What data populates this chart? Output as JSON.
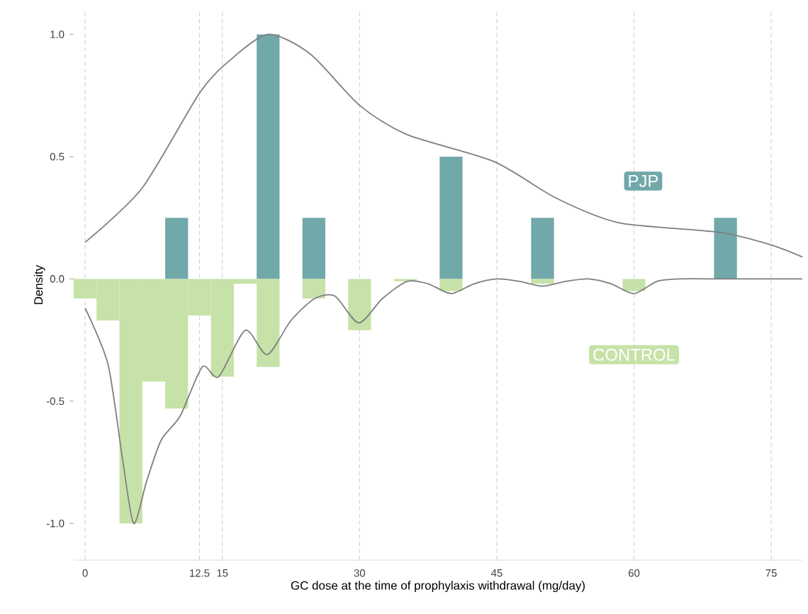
{
  "chart_data": {
    "type": "histogram",
    "xlabel": "GC dose at the time of prophylaxis withdrawal (mg/day)",
    "ylabel": "Density",
    "bins": [
      -1.25,
      1.25,
      3.75,
      6.25,
      8.75,
      11.25,
      13.75,
      16.25,
      18.75,
      21.25,
      23.75,
      26.25,
      28.75,
      31.25,
      33.75,
      36.25,
      38.75,
      41.25,
      43.75,
      46.25,
      48.75,
      51.25,
      53.75,
      56.25,
      58.75,
      61.25,
      63.75,
      66.25,
      68.75,
      71.25
    ],
    "series": [
      {
        "name": "PJP",
        "color": "#71a8a9",
        "values": [
          0,
          0,
          0,
          0,
          0.25,
          0,
          0,
          0,
          1.0,
          0,
          0.25,
          0,
          0,
          0,
          0,
          0,
          0.5,
          0,
          0,
          0,
          0.25,
          0,
          0,
          0,
          0,
          0,
          0,
          0,
          0.25
        ]
      },
      {
        "name": "CONTROL",
        "color": "#c6e2a8",
        "values": [
          -0.08,
          -0.17,
          -1.0,
          -0.42,
          -0.53,
          -0.15,
          -0.4,
          -0.02,
          -0.36,
          0,
          -0.08,
          0,
          -0.21,
          0,
          -0.01,
          0,
          -0.05,
          0,
          0,
          0,
          -0.02,
          0,
          0,
          0,
          -0.05,
          0,
          0,
          0,
          0
        ]
      },
      {
        "type": "line",
        "color": "#7f7f7f",
        "x": [
          0,
          6.2,
          12.5,
          15.7,
          20,
          24.6,
          30,
          35.2,
          44.7,
          51.5,
          58.3,
          69.4,
          74.9,
          78.4
        ],
        "values": [
          0.15,
          0.37,
          0.76,
          0.89,
          1.0,
          0.92,
          0.71,
          0.59,
          0.48,
          0.33,
          0.23,
          0.19,
          0.14,
          0.09
        ]
      },
      {
        "type": "line",
        "color": "#7f7f7f",
        "x": [
          0,
          2.5,
          4.1,
          5.3,
          6.7,
          8.3,
          10.4,
          12.8,
          14.6,
          17.5,
          19.9,
          22.5,
          25.1,
          27.3,
          29.9,
          32.5,
          35.2,
          37.5,
          40,
          42.5,
          45,
          47.5,
          50,
          52.5,
          55,
          57.5,
          60,
          62.5,
          65,
          70,
          78.4
        ],
        "values": [
          -0.12,
          -0.35,
          -0.74,
          -1.0,
          -0.83,
          -0.66,
          -0.56,
          -0.36,
          -0.4,
          -0.21,
          -0.31,
          -0.17,
          -0.08,
          -0.07,
          -0.18,
          -0.08,
          -0.01,
          -0.02,
          -0.06,
          -0.02,
          0,
          -0.01,
          -0.03,
          -0.01,
          0,
          -0.02,
          -0.06,
          -0.01,
          0,
          0,
          0
        ]
      }
    ],
    "xlim": [
      -1.25,
      78.4
    ],
    "ylim": [
      -1.15,
      1.1
    ],
    "xticks": [
      0,
      12.5,
      15,
      30,
      45,
      60,
      75
    ],
    "yticks": [
      {
        "value": -1,
        "label": "-1.0"
      },
      {
        "value": -0.5,
        "label": "-0.5"
      },
      {
        "value": 0,
        "label": "0.0"
      },
      {
        "value": 0.5,
        "label": "0.5"
      },
      {
        "value": 1,
        "label": "1.0"
      }
    ],
    "grid": "x"
  }
}
